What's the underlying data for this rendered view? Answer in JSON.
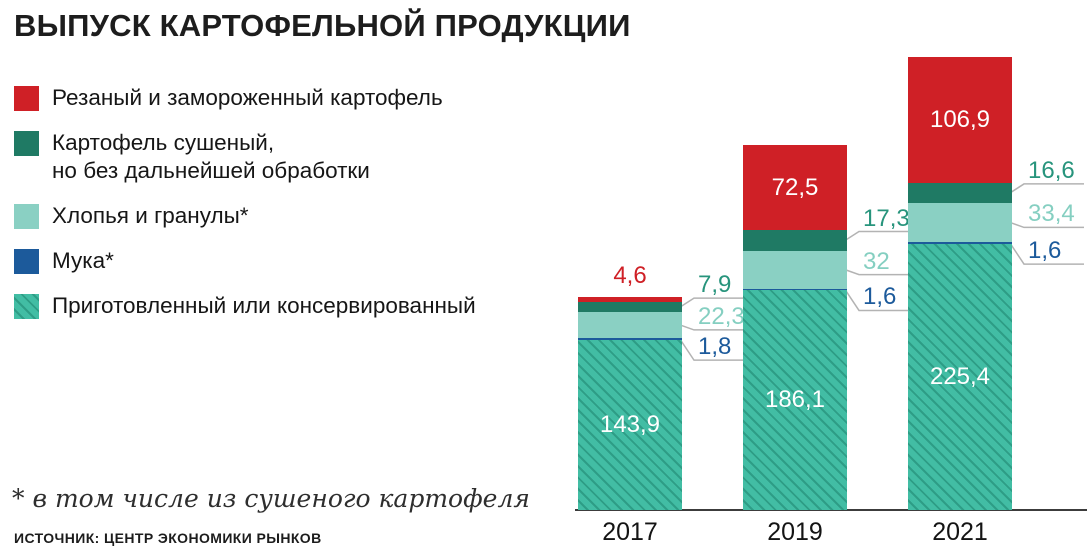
{
  "title": "ВЫПУСК КАРТОФЕЛЬНОЙ ПРОДУКЦИИ",
  "footnote": "* в том числе из сушеного картофеля",
  "source": "ИСТОЧНИК: ЦЕНТР ЭКОНОМИКИ РЫНКОВ",
  "legend": [
    {
      "key": "frozen",
      "label": "Резаный и замороженный картофель",
      "color": "#cf2026",
      "hatch": false
    },
    {
      "key": "dried",
      "label": "Картофель сушеный,\nно без дальнейшей обработки",
      "color": "#1f7a64",
      "hatch": false
    },
    {
      "key": "flakes",
      "label": "Хлопья и гранулы*",
      "color": "#8ad0c3",
      "hatch": false
    },
    {
      "key": "flour",
      "label": "Мука*",
      "color": "#1c5a9b",
      "hatch": false
    },
    {
      "key": "prepared",
      "label": "Приготовленный или консервированный",
      "color": "#3db69c",
      "hatch": true
    }
  ],
  "chart_data": {
    "type": "bar",
    "stacked": true,
    "title": "ВЫПУСК КАРТОФЕЛЬНОЙ ПРОДУКЦИИ",
    "categories": [
      "2017",
      "2019",
      "2021"
    ],
    "series": [
      {
        "key": "prepared",
        "name": "Приготовленный или консервированный",
        "values": [
          143.9,
          186.1,
          225.4
        ],
        "labels": [
          "143,9",
          "186,1",
          "225,4"
        ],
        "color": "#3db69c",
        "hatch": true,
        "label_color": "#ffffff"
      },
      {
        "key": "flour",
        "name": "Мука*",
        "values": [
          1.8,
          1.6,
          1.6
        ],
        "labels": [
          "1,8",
          "1,6",
          "1,6"
        ],
        "color": "#1c5a9b",
        "hatch": false,
        "label_color": "#1c5a9b"
      },
      {
        "key": "flakes",
        "name": "Хлопья и гранулы*",
        "values": [
          22.3,
          32,
          33.4
        ],
        "labels": [
          "22,3",
          "32",
          "33,4"
        ],
        "color": "#8ad0c3",
        "hatch": false,
        "label_color": "#85cfc1"
      },
      {
        "key": "dried",
        "name": "Картофель сушеный, но без дальнейшей обработки",
        "values": [
          7.9,
          17.3,
          16.6
        ],
        "labels": [
          "7,9",
          "17,3",
          "16,6"
        ],
        "color": "#1f7a64",
        "hatch": false,
        "label_color": "#27947c"
      },
      {
        "key": "frozen",
        "name": "Резаный и замороженный картофель",
        "values": [
          4.6,
          72.5,
          106.9
        ],
        "labels": [
          "4,6",
          "72,5",
          "106,9"
        ],
        "color": "#cf2026",
        "hatch": false,
        "label_color": "#cf2026"
      }
    ],
    "legend_position": "left",
    "grid": false,
    "ylim": [
      0,
      390
    ]
  }
}
